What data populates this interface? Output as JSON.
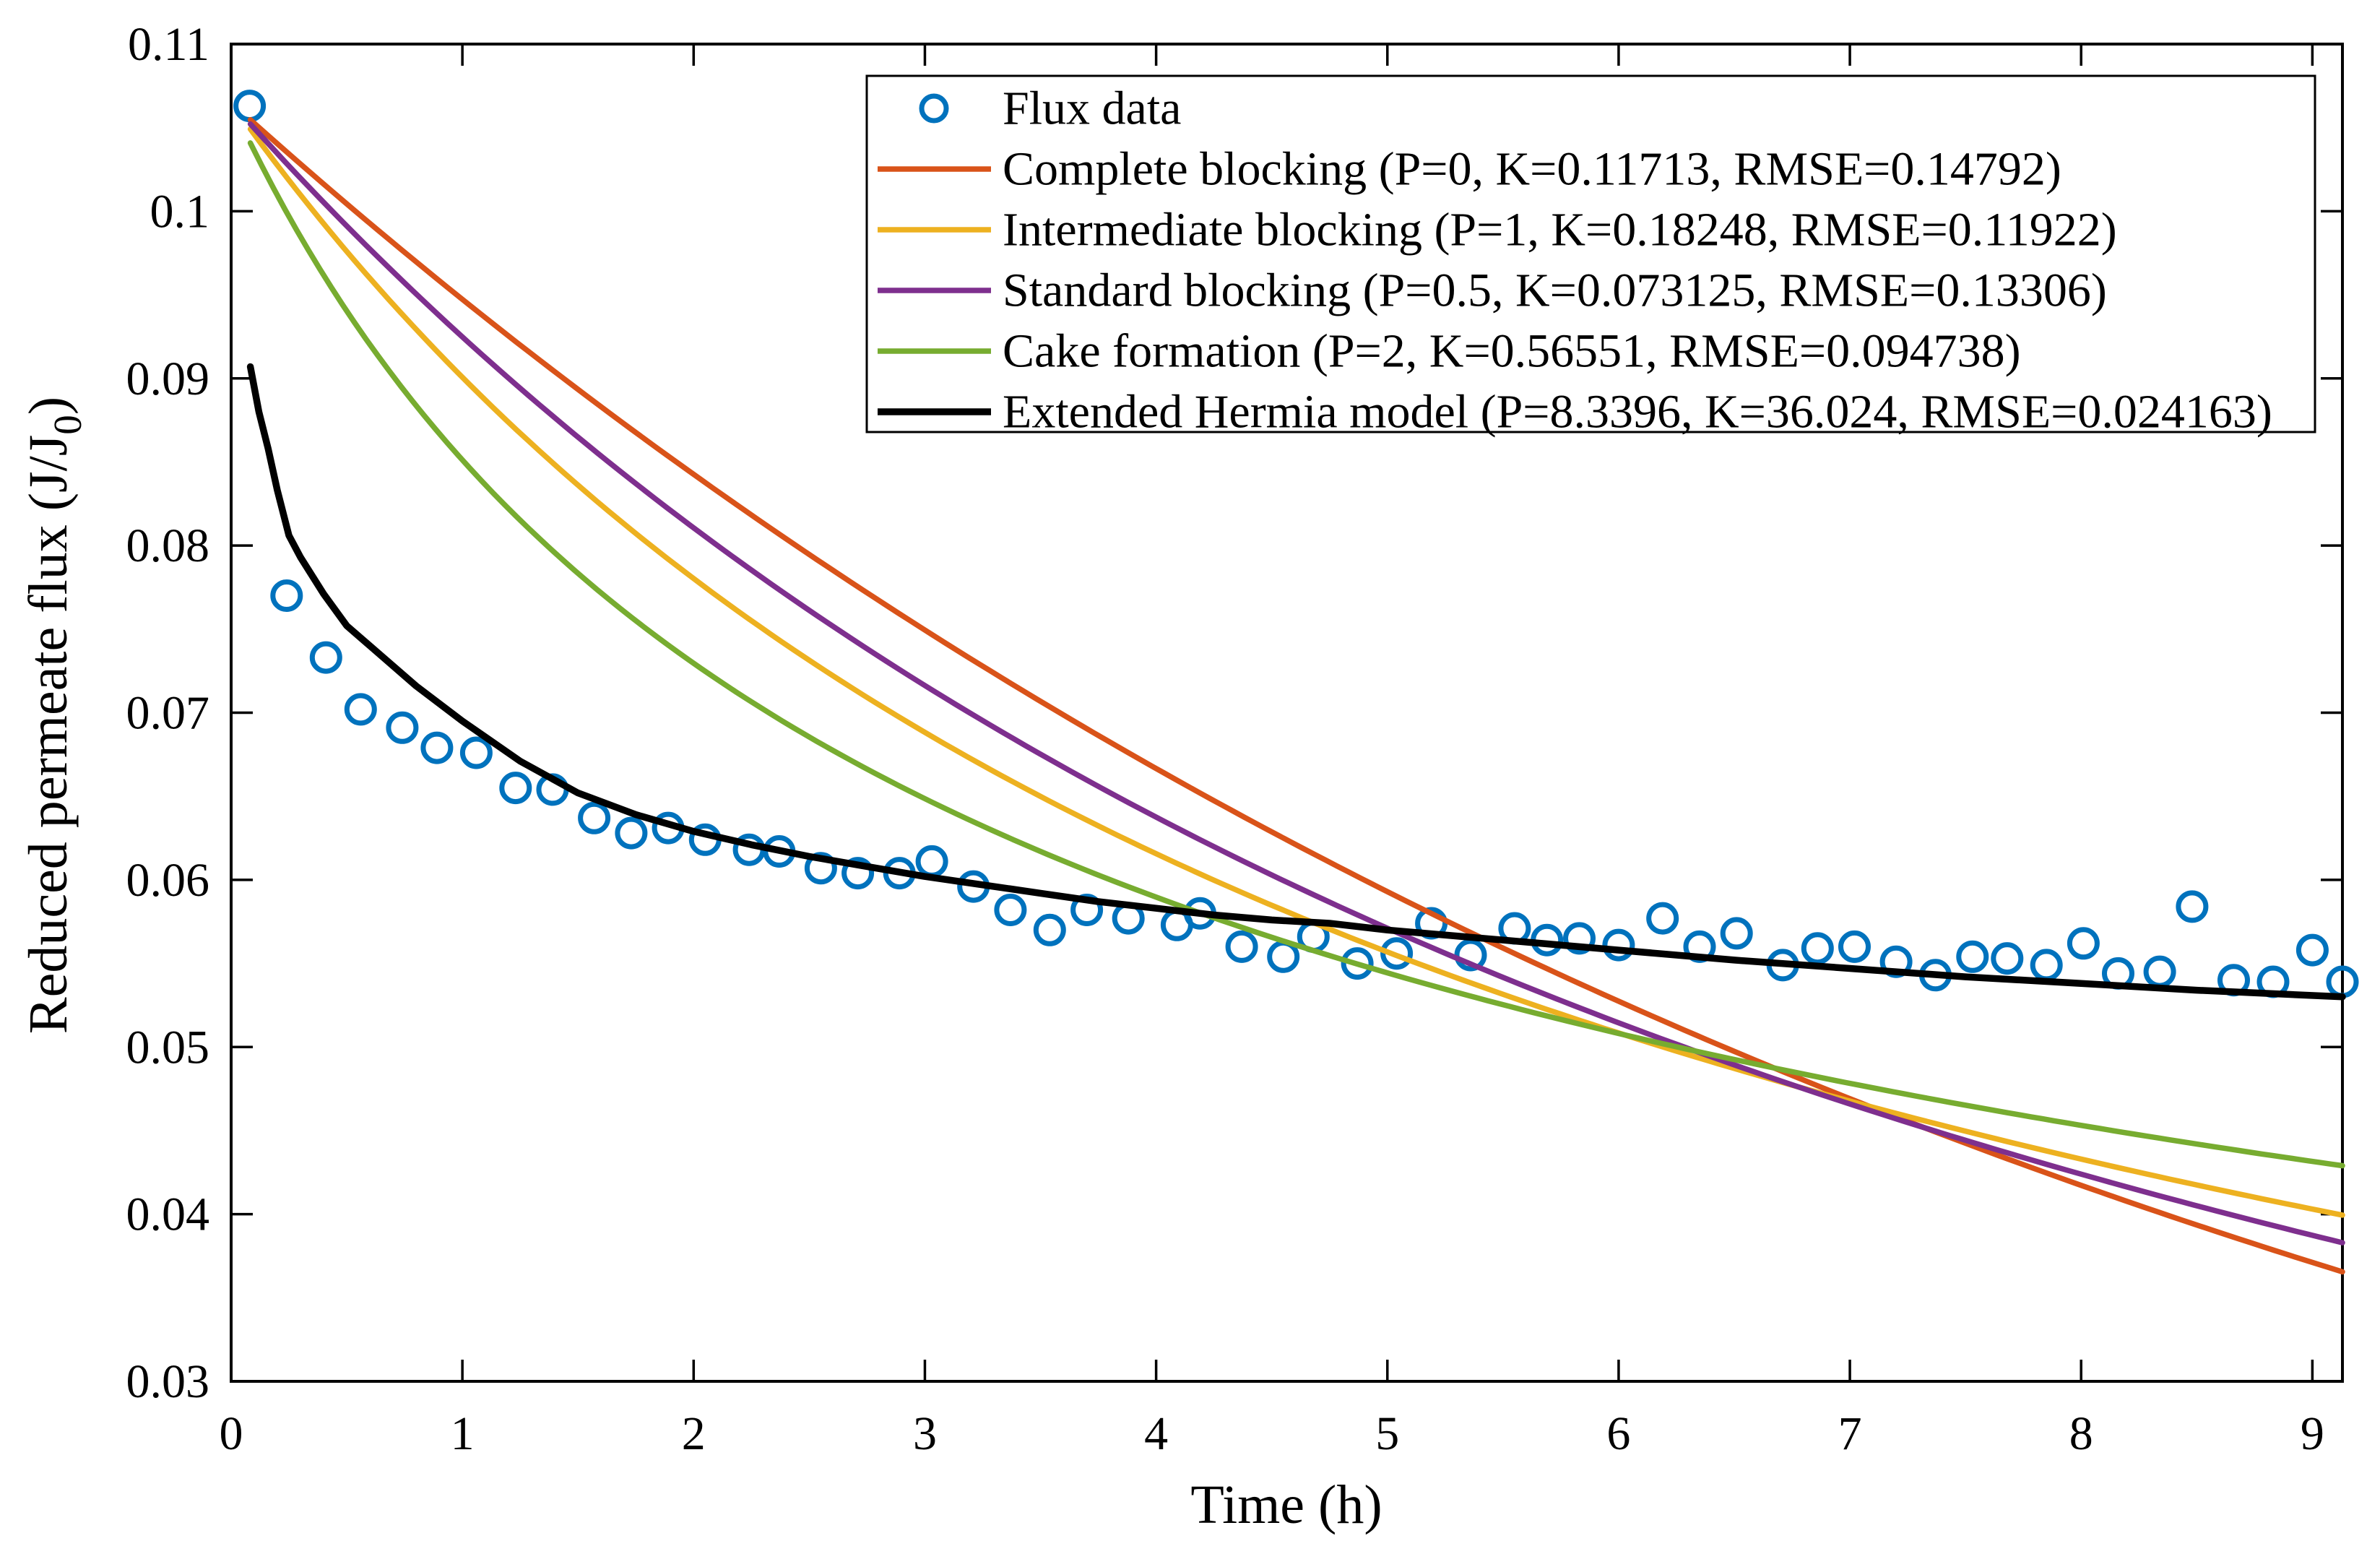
{
  "chart_data": {
    "type": "scatter",
    "title": "",
    "xlabel": "Time (h)",
    "ylabel": "Reduced permeate flux (J/J0)",
    "ylabel_parts": {
      "pre": "Reduced permeate flux (J/J",
      "sub": "0",
      "post": ")"
    },
    "xlim": [
      0,
      9.13
    ],
    "ylim": [
      0.03,
      0.11
    ],
    "grid": false,
    "box": true,
    "tick_direction": "in",
    "axis_color": "#000000",
    "background_color": "#ffffff",
    "legend": {
      "position": "top-right",
      "border_color": "#000000",
      "fill": "#ffffff"
    },
    "x_ticks": [
      {
        "v": 0,
        "label": "0"
      },
      {
        "v": 1,
        "label": "1"
      },
      {
        "v": 2,
        "label": "2"
      },
      {
        "v": 3,
        "label": "3"
      },
      {
        "v": 4,
        "label": "4"
      },
      {
        "v": 5,
        "label": "5"
      },
      {
        "v": 6,
        "label": "6"
      },
      {
        "v": 7,
        "label": "7"
      },
      {
        "v": 8,
        "label": "8"
      },
      {
        "v": 9,
        "label": "9"
      }
    ],
    "y_ticks": [
      {
        "v": 0.03,
        "label": "0.03"
      },
      {
        "v": 0.04,
        "label": "0.04"
      },
      {
        "v": 0.05,
        "label": "0.05"
      },
      {
        "v": 0.06,
        "label": "0.06"
      },
      {
        "v": 0.07,
        "label": "0.07"
      },
      {
        "v": 0.08,
        "label": "0.08"
      },
      {
        "v": 0.09,
        "label": "0.09"
      },
      {
        "v": 0.1,
        "label": "0.1"
      },
      {
        "v": 0.11,
        "label": "0.11"
      }
    ],
    "series": [
      {
        "id": "flux-data",
        "label": "Flux data",
        "type": "scatter",
        "color": "#0072BD",
        "marker": "circle",
        "marker_radius": 19,
        "marker_stroke": 7,
        "points": [
          [
            0.08,
            0.1063
          ],
          [
            0.24,
            0.077
          ],
          [
            0.41,
            0.0733
          ],
          [
            0.56,
            0.0702
          ],
          [
            0.74,
            0.0691
          ],
          [
            0.89,
            0.0679
          ],
          [
            1.06,
            0.0676
          ],
          [
            1.23,
            0.0655
          ],
          [
            1.39,
            0.0654
          ],
          [
            1.57,
            0.0637
          ],
          [
            1.73,
            0.0628
          ],
          [
            1.89,
            0.0631
          ],
          [
            2.05,
            0.0624
          ],
          [
            2.24,
            0.0618
          ],
          [
            2.37,
            0.0617
          ],
          [
            2.55,
            0.0607
          ],
          [
            2.71,
            0.0604
          ],
          [
            2.89,
            0.0604
          ],
          [
            3.03,
            0.0611
          ],
          [
            3.21,
            0.0596
          ],
          [
            3.37,
            0.0582
          ],
          [
            3.54,
            0.057
          ],
          [
            3.7,
            0.0582
          ],
          [
            3.88,
            0.0577
          ],
          [
            4.09,
            0.0573
          ],
          [
            4.19,
            0.058
          ],
          [
            4.37,
            0.056
          ],
          [
            4.55,
            0.0554
          ],
          [
            4.68,
            0.0566
          ],
          [
            4.87,
            0.055
          ],
          [
            5.04,
            0.0556
          ],
          [
            5.19,
            0.0574
          ],
          [
            5.36,
            0.0555
          ],
          [
            5.55,
            0.0571
          ],
          [
            5.69,
            0.0564
          ],
          [
            5.83,
            0.0565
          ],
          [
            6.0,
            0.0561
          ],
          [
            6.19,
            0.0577
          ],
          [
            6.35,
            0.056
          ],
          [
            6.51,
            0.0568
          ],
          [
            6.71,
            0.0549
          ],
          [
            6.86,
            0.0559
          ],
          [
            7.02,
            0.056
          ],
          [
            7.2,
            0.0551
          ],
          [
            7.37,
            0.0543
          ],
          [
            7.53,
            0.0554
          ],
          [
            7.68,
            0.0553
          ],
          [
            7.85,
            0.0549
          ],
          [
            8.01,
            0.0562
          ],
          [
            8.16,
            0.0544
          ],
          [
            8.34,
            0.0545
          ],
          [
            8.48,
            0.0584
          ],
          [
            8.66,
            0.054
          ],
          [
            8.83,
            0.0539
          ],
          [
            9.0,
            0.0558
          ],
          [
            9.13,
            0.0539
          ]
        ]
      },
      {
        "id": "complete-blocking",
        "label": "Complete blocking (P=0, K=0.11713, RMSE=0.14792)",
        "type": "model",
        "model": "complete",
        "P": 0,
        "K": 0.11713,
        "RMSE": 0.14792,
        "J0": 0.1065,
        "t_start": 0.083,
        "t_end": 9.13,
        "color": "#D95319",
        "line_width": 7.5
      },
      {
        "id": "intermediate-blocking",
        "label": "Intermediate blocking (P=1, K=0.18248, RMSE=0.11922)",
        "type": "model",
        "model": "intermediate",
        "P": 1,
        "K": 0.18248,
        "RMSE": 0.11922,
        "J0": 0.1065,
        "t_start": 0.083,
        "t_end": 9.13,
        "color": "#EDB120",
        "line_width": 7.5
      },
      {
        "id": "standard-blocking",
        "label": "Standard blocking (P=0.5, K=0.073125, RMSE=0.13306)",
        "type": "model",
        "model": "standard",
        "P": 0.5,
        "K": 0.073125,
        "RMSE": 0.13306,
        "J0": 0.1065,
        "t_start": 0.083,
        "t_end": 9.13,
        "color": "#7E2F8E",
        "line_width": 7.5
      },
      {
        "id": "cake-formation",
        "label": "Cake formation (P=2, K=0.56551, RMSE=0.094738)",
        "type": "model",
        "model": "cake",
        "P": 2,
        "K": 0.56551,
        "RMSE": 0.094738,
        "J0": 0.1065,
        "t_start": 0.083,
        "t_end": 9.13,
        "color": "#77AC30",
        "line_width": 7.5
      },
      {
        "id": "extended-hermia",
        "label": "Extended Hermia model (P=8.3396, K=36.024, RMSE=0.024163)",
        "type": "sampled",
        "P": 8.3396,
        "K": 36.024,
        "RMSE": 0.024163,
        "color": "#000000",
        "line_width": 9.5,
        "points": [
          [
            0.083,
            0.0907
          ],
          [
            0.12,
            0.088
          ],
          [
            0.16,
            0.0858
          ],
          [
            0.2,
            0.0833
          ],
          [
            0.25,
            0.0806
          ],
          [
            0.3,
            0.0793
          ],
          [
            0.4,
            0.0771
          ],
          [
            0.5,
            0.0752
          ],
          [
            0.65,
            0.0734
          ],
          [
            0.8,
            0.0716
          ],
          [
            1.0,
            0.0695
          ],
          [
            1.25,
            0.0671
          ],
          [
            1.5,
            0.0652
          ],
          [
            1.75,
            0.0639
          ],
          [
            2.0,
            0.0629
          ],
          [
            2.25,
            0.0621
          ],
          [
            2.5,
            0.0614
          ],
          [
            2.75,
            0.0608
          ],
          [
            3.0,
            0.0602
          ],
          [
            3.25,
            0.0597
          ],
          [
            3.5,
            0.0592
          ],
          [
            3.75,
            0.0587
          ],
          [
            4.0,
            0.0583
          ],
          [
            4.25,
            0.0579
          ],
          [
            4.5,
            0.0576
          ],
          [
            4.75,
            0.0574
          ],
          [
            5.0,
            0.057
          ],
          [
            5.5,
            0.0564
          ],
          [
            6.0,
            0.0558
          ],
          [
            6.5,
            0.0552
          ],
          [
            7.0,
            0.0547
          ],
          [
            7.5,
            0.0542
          ],
          [
            8.0,
            0.0538
          ],
          [
            8.5,
            0.0534
          ],
          [
            9.13,
            0.053
          ]
        ]
      }
    ]
  }
}
